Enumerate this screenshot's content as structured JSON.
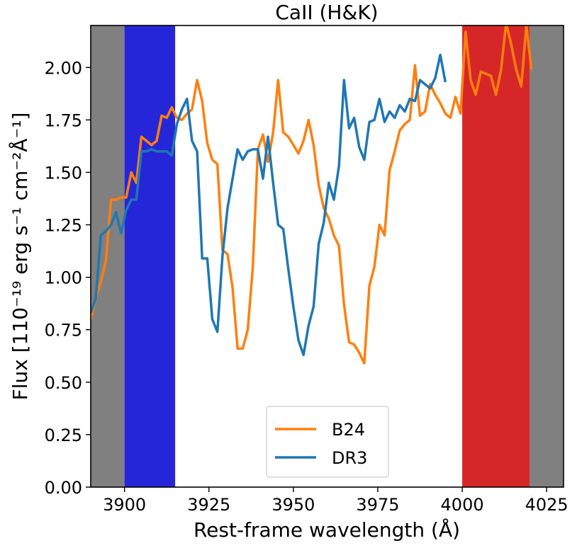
{
  "chart_data": {
    "type": "line",
    "title": "CaII (H&K)",
    "xlabel": "Rest-frame wavelength (Å)",
    "ylabel": "Flux [110⁻¹⁹ erg s⁻¹ cm⁻²Å⁻¹]",
    "xlim": [
      3890,
      4030
    ],
    "ylim": [
      0,
      2.2
    ],
    "x_ticks": [
      3900,
      3925,
      3950,
      3975,
      4000,
      4025
    ],
    "y_ticks": [
      0.0,
      0.25,
      0.5,
      0.75,
      1.0,
      1.25,
      1.5,
      1.75,
      2.0
    ],
    "x_tick_labels": [
      "3900",
      "3925",
      "3950",
      "3975",
      "4000",
      "4025"
    ],
    "y_tick_labels": [
      "0.00",
      "0.25",
      "0.50",
      "0.75",
      "1.00",
      "1.25",
      "1.50",
      "1.75",
      "2.00"
    ],
    "grid": false,
    "legend_position": "lower center",
    "bands": [
      {
        "x0": 3890,
        "x1": 3900,
        "color": "#808080"
      },
      {
        "x0": 3900,
        "x1": 3915,
        "color": "#2626d9"
      },
      {
        "x0": 4000,
        "x1": 4020,
        "color": "#d62728"
      },
      {
        "x0": 4020,
        "x1": 4030,
        "color": "#808080"
      }
    ],
    "series": [
      {
        "name": "B24",
        "color": "#ff7f0e",
        "points": [
          [
            3890,
            0.8
          ],
          [
            3891.5,
            0.9
          ],
          [
            3893,
            0.98
          ],
          [
            3894.5,
            1.08
          ],
          [
            3896,
            1.37
          ],
          [
            3897.5,
            1.37
          ],
          [
            3899,
            1.38
          ],
          [
            3900.5,
            1.38
          ],
          [
            3902,
            1.5
          ],
          [
            3903.5,
            1.45
          ],
          [
            3905,
            1.67
          ],
          [
            3906.5,
            1.65
          ],
          [
            3908,
            1.63
          ],
          [
            3909.5,
            1.65
          ],
          [
            3911,
            1.77
          ],
          [
            3912.5,
            1.76
          ],
          [
            3914,
            1.81
          ],
          [
            3915.5,
            1.76
          ],
          [
            3917,
            1.75
          ],
          [
            3918.5,
            1.78
          ],
          [
            3920,
            1.8
          ],
          [
            3921.5,
            1.94
          ],
          [
            3923,
            1.84
          ],
          [
            3924.5,
            1.64
          ],
          [
            3926,
            1.56
          ],
          [
            3927.5,
            1.54
          ],
          [
            3929,
            1.13
          ],
          [
            3930.5,
            1.11
          ],
          [
            3932,
            0.95
          ],
          [
            3933.5,
            0.66
          ],
          [
            3935,
            0.66
          ],
          [
            3936.5,
            0.75
          ],
          [
            3938,
            1.05
          ],
          [
            3939.5,
            1.61
          ],
          [
            3941,
            1.68
          ],
          [
            3942.5,
            1.55
          ],
          [
            3944,
            1.69
          ],
          [
            3945.5,
            1.94
          ],
          [
            3947,
            1.69
          ],
          [
            3948.5,
            1.67
          ],
          [
            3950,
            1.63
          ],
          [
            3951.5,
            1.59
          ],
          [
            3953,
            1.65
          ],
          [
            3954.5,
            1.75
          ],
          [
            3956,
            1.63
          ],
          [
            3957.5,
            1.44
          ],
          [
            3959,
            1.33
          ],
          [
            3960.5,
            1.28
          ],
          [
            3962,
            1.2
          ],
          [
            3963.5,
            1.15
          ],
          [
            3965,
            0.87
          ],
          [
            3966.5,
            0.69
          ],
          [
            3968,
            0.68
          ],
          [
            3969.5,
            0.64
          ],
          [
            3971,
            0.59
          ],
          [
            3972.5,
            0.96
          ],
          [
            3974,
            1.05
          ],
          [
            3975.5,
            1.25
          ],
          [
            3977,
            1.2
          ],
          [
            3978.5,
            1.51
          ],
          [
            3980,
            1.6
          ],
          [
            3981.5,
            1.7
          ],
          [
            3983,
            1.73
          ],
          [
            3984.5,
            1.75
          ],
          [
            3986,
            2.01
          ],
          [
            3987.5,
            1.77
          ],
          [
            3989,
            1.79
          ],
          [
            3990.5,
            1.92
          ],
          [
            3992,
            1.87
          ],
          [
            3993.5,
            1.83
          ],
          [
            3995,
            1.78
          ],
          [
            3996.5,
            1.76
          ],
          [
            3998,
            1.86
          ],
          [
            3999.5,
            1.78
          ],
          [
            4001,
            2.17
          ],
          [
            4002.5,
            1.94
          ],
          [
            4004,
            1.87
          ],
          [
            4005.5,
            1.98
          ],
          [
            4007,
            1.97
          ],
          [
            4008.5,
            1.96
          ],
          [
            4010,
            1.87
          ],
          [
            4011.5,
            1.99
          ],
          [
            4013,
            2.21
          ],
          [
            4014.5,
            2.11
          ],
          [
            4016,
            1.99
          ],
          [
            4017.5,
            1.91
          ],
          [
            4019,
            2.2
          ],
          [
            4020.5,
            1.99
          ]
        ]
      },
      {
        "name": "DR3",
        "color": "#1f77b4",
        "points": [
          [
            3890,
            0.83
          ],
          [
            3891.5,
            0.9
          ],
          [
            3893,
            1.2
          ],
          [
            3894.5,
            1.22
          ],
          [
            3896,
            1.25
          ],
          [
            3897.5,
            1.31
          ],
          [
            3899,
            1.21
          ],
          [
            3900.5,
            1.32
          ],
          [
            3902,
            1.37
          ],
          [
            3903.5,
            1.37
          ],
          [
            3905,
            1.6
          ],
          [
            3906.5,
            1.6
          ],
          [
            3908,
            1.61
          ],
          [
            3909.5,
            1.6
          ],
          [
            3911,
            1.6
          ],
          [
            3912.5,
            1.6
          ],
          [
            3914,
            1.58
          ],
          [
            3915.5,
            1.73
          ],
          [
            3917,
            1.8
          ],
          [
            3918.5,
            1.85
          ],
          [
            3920,
            1.65
          ],
          [
            3921.5,
            1.6
          ],
          [
            3923,
            1.09
          ],
          [
            3924.5,
            1.09
          ],
          [
            3926,
            0.8
          ],
          [
            3927.5,
            0.74
          ],
          [
            3929,
            1.1
          ],
          [
            3930.5,
            1.33
          ],
          [
            3932,
            1.47
          ],
          [
            3933.5,
            1.61
          ],
          [
            3935,
            1.56
          ],
          [
            3936.5,
            1.6
          ],
          [
            3938,
            1.61
          ],
          [
            3939.5,
            1.61
          ],
          [
            3941,
            1.47
          ],
          [
            3942.5,
            1.67
          ],
          [
            3944,
            1.45
          ],
          [
            3945.5,
            1.25
          ],
          [
            3947,
            1.23
          ],
          [
            3948.5,
            1.04
          ],
          [
            3950,
            0.86
          ],
          [
            3951.5,
            0.7
          ],
          [
            3953,
            0.63
          ],
          [
            3954.5,
            0.77
          ],
          [
            3956,
            0.86
          ],
          [
            3957.5,
            1.16
          ],
          [
            3959,
            1.26
          ],
          [
            3960.5,
            1.45
          ],
          [
            3962,
            1.37
          ],
          [
            3963.5,
            1.53
          ],
          [
            3965,
            1.94
          ],
          [
            3966.5,
            1.71
          ],
          [
            3968,
            1.76
          ],
          [
            3969.5,
            1.62
          ],
          [
            3971,
            1.56
          ],
          [
            3972.5,
            1.74
          ],
          [
            3974,
            1.75
          ],
          [
            3975.5,
            1.85
          ],
          [
            3977,
            1.74
          ],
          [
            3978.5,
            1.79
          ],
          [
            3980,
            1.76
          ],
          [
            3981.5,
            1.82
          ],
          [
            3983,
            1.79
          ],
          [
            3984.5,
            1.85
          ],
          [
            3986,
            1.84
          ],
          [
            3987.5,
            1.94
          ],
          [
            3989,
            1.92
          ],
          [
            3990.5,
            1.9
          ],
          [
            3992,
            1.95
          ],
          [
            3993.5,
            2.06
          ],
          [
            3995,
            1.93
          ]
        ]
      }
    ]
  }
}
